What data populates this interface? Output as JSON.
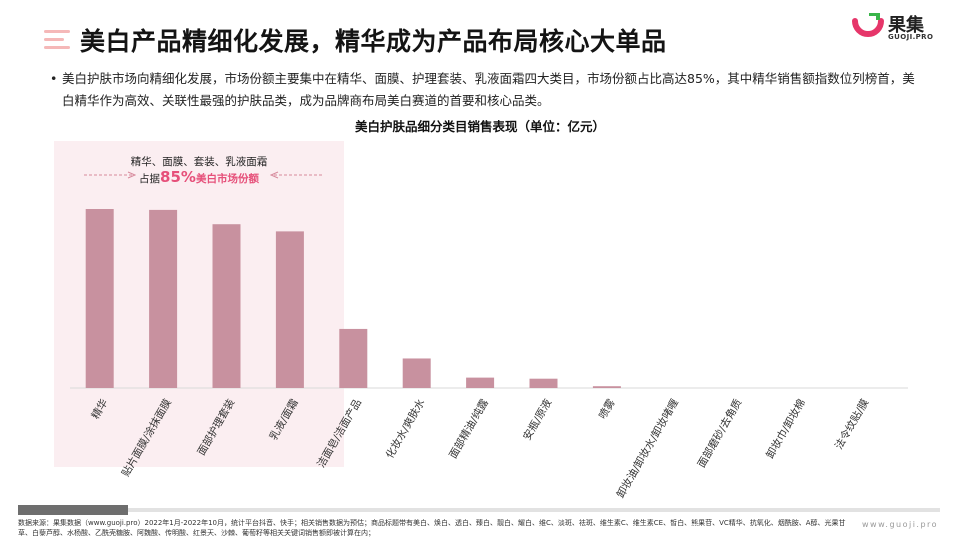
{
  "header": {
    "title": "美白产品精细化发展，精华成为产品布局核心大单品",
    "logo_name": "果集",
    "logo_domain": "GUOJI.PRO"
  },
  "summary": "美白护肤市场向精细化发展，市场份额主要集中在精华、面膜、护理套装、乳液面霜四大类目，市场份额占比高达85%，其中精华销售额指数位列榜首，美白精华作为高效、关联性最强的护肤品类，成为品牌商布局美白赛道的首要和核心品类。",
  "highlight": {
    "line1": "精华、面膜、套装、乳液面霜",
    "prefix": "占据",
    "percent": "85%",
    "suffix": "美白市场份额"
  },
  "chart_data": {
    "type": "bar",
    "title": "美白护肤品细分类目销售表现（单位：亿元）",
    "categories": [
      "精华",
      "贴片面膜/涂抹面膜",
      "面部护理套装",
      "乳液/面霜",
      "洁面皂/洁面产品",
      "化妆水/爽肤水",
      "面部精油/纯露",
      "安瓶/原液",
      "喷雾",
      "卸妆油/卸妆水/卸妆啫喱",
      "面部磨砂/去角质",
      "卸妆巾/卸妆棉",
      "法令纹贴/膜"
    ],
    "values": [
      100,
      99.5,
      91.5,
      87.5,
      33,
      16.5,
      5.8,
      5.2,
      1.0,
      0,
      0,
      0,
      0
    ],
    "ylim": [
      0,
      100
    ],
    "grid": false,
    "color": "#c8919f"
  },
  "colors": {
    "accent": "#e6507a",
    "bar": "#c8919f",
    "band": "#fbeef1"
  },
  "footer": {
    "source": "数据来源：果集数据（www.guoji.pro）2022年1月-2022年10月，统计平台抖音、快手；相关销售数据为预估；商品标题带有美白、焕白、透白、臻白、靓白、耀白、维C、淡斑、祛斑、维生素C、维生素CE、皙白、熊果苷、VC精华、抗氧化、烟酰胺、A醇、光果甘草、白藜芦醇、水杨酸、乙酰壳糖胺、阿魏酸、传明酸、红景天、沙棘、葡萄籽等相关关键词销售额即被计算在内；",
    "website": "www.guoji.pro"
  }
}
